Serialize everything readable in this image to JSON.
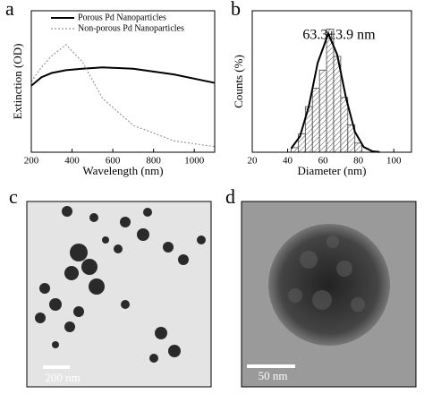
{
  "chart_data": [
    {
      "type": "line",
      "x_label": "Wavelength (nm)",
      "y_label": "Extinction (OD)",
      "x": [
        200,
        250,
        300,
        370,
        450,
        550,
        700,
        900,
        1100
      ],
      "series": [
        {
          "name": "Porous Pd Nanoparticles",
          "color": "#000000",
          "style": "solid",
          "values": [
            0.47,
            0.53,
            0.56,
            0.58,
            0.59,
            0.6,
            0.59,
            0.55,
            0.49
          ]
        },
        {
          "name": "Non-porous Pd Nanoparticles",
          "color": "#9a9a9a",
          "style": "dotted",
          "values": [
            0.5,
            0.6,
            0.68,
            0.76,
            0.64,
            0.38,
            0.19,
            0.08,
            0.04
          ]
        }
      ],
      "xlim": [
        200,
        1100
      ],
      "xticks": [
        200,
        400,
        600,
        800,
        1000
      ],
      "ylim": [
        0,
        1
      ],
      "legend": "top"
    },
    {
      "type": "histogram",
      "x_label": "Diameter (nm)",
      "y_label": "Counts (%)",
      "annotation": "63.3±3.9 nm",
      "bins": [
        42,
        46,
        50,
        54,
        58,
        62,
        66,
        70,
        74,
        78,
        82
      ],
      "values": [
        1,
        4,
        10,
        14,
        18,
        27,
        21,
        12,
        6,
        2
      ],
      "fit": {
        "x": [
          42,
          47,
          52,
          57,
          63,
          68,
          73,
          78,
          83,
          88,
          92
        ],
        "values": [
          0.83,
          3.5,
          10.1,
          19.6,
          26,
          21.4,
          11.9,
          4.5,
          1.14,
          0.2,
          0.04
        ]
      },
      "xlim": [
        20,
        110
      ],
      "xticks": [
        20,
        40,
        60,
        80,
        100
      ],
      "ylim": [
        0,
        31
      ]
    }
  ],
  "panel_labels": [
    "a",
    "b",
    "c",
    "d"
  ],
  "images": [
    {
      "scale_bar": "200 nm"
    },
    {
      "scale_bar": "50 nm"
    }
  ]
}
